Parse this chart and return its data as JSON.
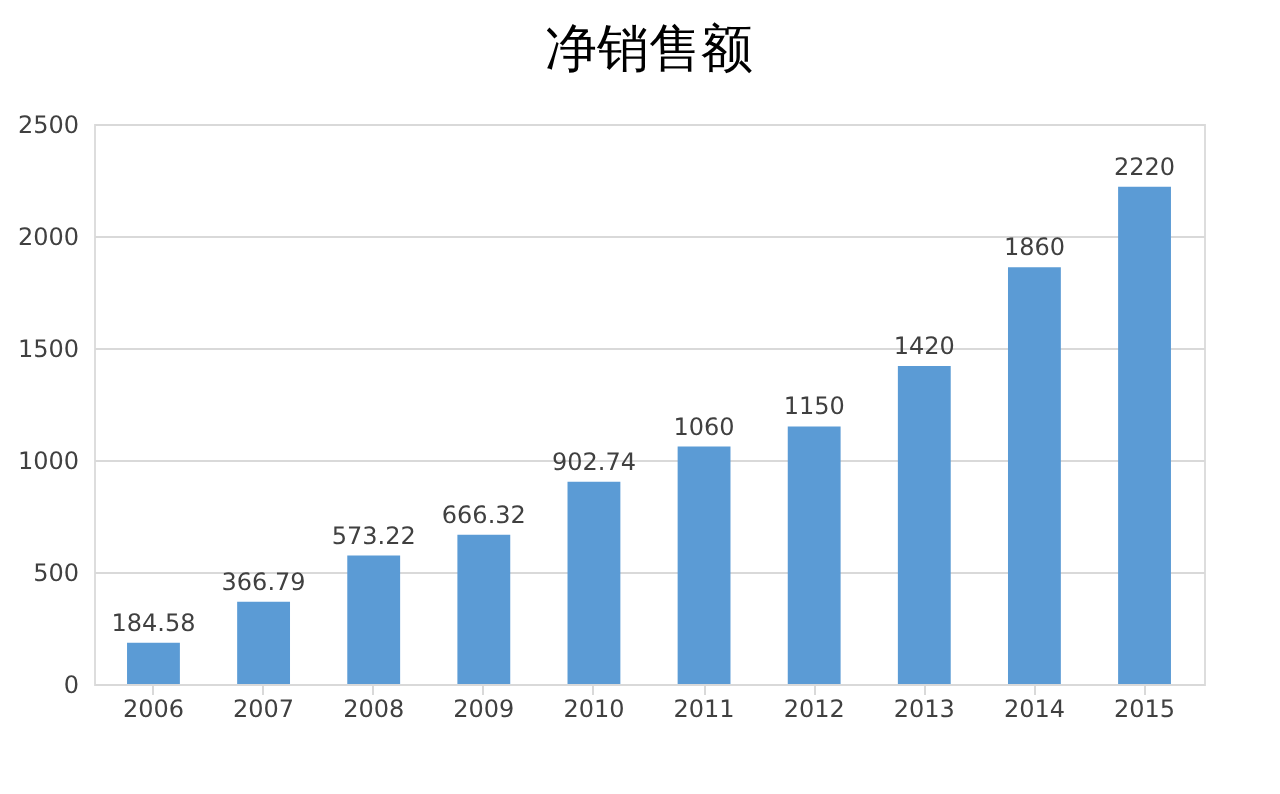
{
  "chart_data": {
    "type": "bar",
    "title": "净销售额",
    "categories": [
      "2006",
      "2007",
      "2008",
      "2009",
      "2010",
      "2011",
      "2012",
      "2013",
      "2014",
      "2015"
    ],
    "values": [
      184.58,
      366.79,
      573.22,
      666.32,
      902.74,
      1060,
      1150,
      1420,
      1860,
      2220
    ],
    "color": "#5b9bd5",
    "ylim": [
      0,
      2500
    ],
    "yticks": [
      0,
      500,
      1000,
      1500,
      2000,
      2500
    ],
    "grid": "y",
    "data_labels": true
  }
}
